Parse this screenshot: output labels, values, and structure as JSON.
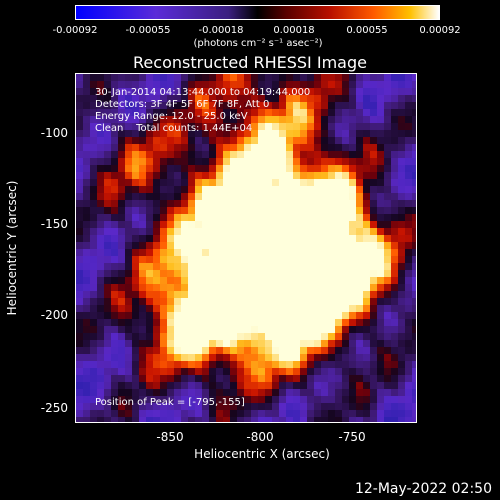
{
  "colorbar": {
    "ticks": [
      "-0.00092",
      "-0.00055",
      "-0.00018",
      "0.00018",
      "0.00055",
      "0.00092"
    ],
    "unit_label": "(photons cm⁻² s⁻¹ asec⁻²)"
  },
  "title": "Reconstructed RHESSI Image",
  "info": {
    "line1": "30-Jan-2014 04:13:44.000 to 04:19:44.000",
    "line2": "Detectors: 3F 4F 5F 6F 7F 8F, Att 0",
    "line3": "Energy Range: 12.0 - 25.0 keV",
    "line4": "Clean    Total counts: 1.44E+04",
    "peak": "Position of Peak = [-795,-155]"
  },
  "footer": "12-May-2022 02:50",
  "colors": {
    "background": "#000000",
    "frame": "#ffffff"
  },
  "chart_data": {
    "type": "heatmap",
    "title": "Reconstructed RHESSI Image",
    "xlabel": "Heliocentric X (arcsec)",
    "ylabel": "Heliocentric Y (arcsec)",
    "xlim": [
      -900,
      -715
    ],
    "ylim": [
      -262,
      -73
    ],
    "x_ticks": [
      "-850",
      "-800",
      "-750"
    ],
    "y_ticks": [
      "-100",
      "-150",
      "-200",
      "-250"
    ],
    "x_tick_values": [
      -850,
      -800,
      -750
    ],
    "y_tick_values": [
      -100,
      -150,
      -200,
      -250
    ],
    "colorbar_range": [
      -0.00092,
      0.00092
    ],
    "peak": [
      -795,
      -155
    ]
  }
}
